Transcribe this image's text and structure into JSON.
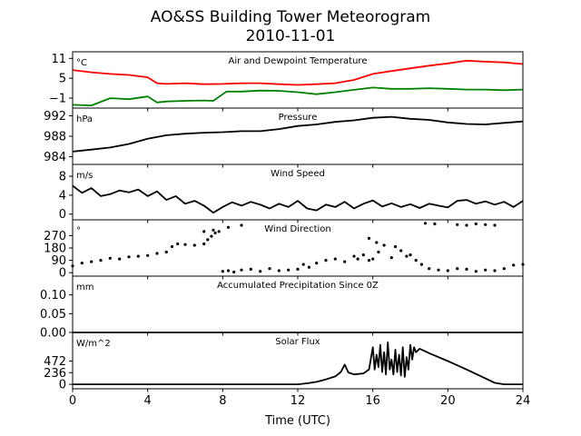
{
  "title": "AO&SS Building Tower Meteorogram",
  "subtitle": "2010-11-01",
  "xlabel": "Time (UTC)",
  "chart_data": {
    "type": "line",
    "x_unit": "hours UTC",
    "xlim": [
      0,
      24
    ],
    "x_ticks": [
      "0",
      "4",
      "8",
      "12",
      "16",
      "20",
      "24"
    ],
    "panels": [
      {
        "key": "temp",
        "title": "Air and Dewpoint Temperature",
        "unit": "°C",
        "ylim": [
          -4,
          13
        ],
        "y_ticks": [
          {
            "v": 11,
            "t": "11"
          },
          {
            "v": 5,
            "t": "5"
          },
          {
            "v": -1,
            "t": "−1"
          }
        ],
        "series": [
          {
            "color": "#ff0000",
            "style": "line",
            "x": [
              0,
              1,
              2,
              3,
              4,
              4.5,
              5,
              6,
              7,
              8,
              9,
              10,
              11,
              12,
              13,
              14,
              15,
              16,
              17,
              18,
              19,
              20,
              21,
              22,
              23,
              24
            ],
            "y": [
              7.5,
              6.8,
              6.3,
              6.0,
              5.3,
              3.5,
              3.3,
              3.5,
              3.2,
              3.3,
              3.5,
              3.5,
              3.2,
              3.0,
              3.2,
              3.5,
              4.5,
              6.3,
              7.2,
              8.0,
              8.8,
              9.5,
              10.3,
              10.0,
              9.8,
              9.3
            ]
          },
          {
            "color": "#008000",
            "style": "line",
            "x": [
              0,
              1,
              2,
              3,
              4,
              4.5,
              5,
              6,
              7,
              7.5,
              8.2,
              9,
              10,
              11,
              12,
              13,
              14,
              15,
              16,
              17,
              18,
              19,
              20,
              21,
              22,
              23,
              24
            ],
            "y": [
              -3.0,
              -3.2,
              -1.0,
              -1.3,
              -0.5,
              -2.3,
              -2.0,
              -1.8,
              -1.7,
              -1.8,
              1.0,
              1.0,
              1.3,
              1.2,
              0.8,
              0.2,
              0.8,
              1.5,
              2.2,
              1.8,
              1.8,
              2.0,
              1.8,
              1.6,
              1.6,
              1.4,
              1.6
            ]
          }
        ]
      },
      {
        "key": "pressure",
        "title": "Pressure",
        "unit": "hPa",
        "ylim": [
          982.5,
          993.5
        ],
        "y_ticks": [
          {
            "v": 992,
            "t": "992"
          },
          {
            "v": 988,
            "t": "988"
          },
          {
            "v": 984,
            "t": "984"
          }
        ],
        "series": [
          {
            "color": "#000000",
            "style": "line",
            "x": [
              0,
              1,
              2,
              3,
              4,
              5,
              6,
              7,
              8,
              9,
              10,
              11,
              12,
              13,
              14,
              15,
              16,
              17,
              18,
              19,
              20,
              21,
              22,
              23,
              24
            ],
            "y": [
              985.0,
              985.4,
              985.8,
              986.5,
              987.5,
              988.2,
              988.5,
              988.7,
              988.8,
              989.0,
              989.0,
              989.4,
              990.0,
              990.3,
              990.8,
              991.1,
              991.6,
              991.8,
              991.4,
              991.2,
              990.7,
              990.4,
              990.3,
              990.6,
              990.9
            ]
          }
        ]
      },
      {
        "key": "wind_speed",
        "title": "Wind Speed",
        "unit": "m/s",
        "ylim": [
          -1.2,
          10.5
        ],
        "y_ticks": [
          {
            "v": 8,
            "t": "8"
          },
          {
            "v": 4,
            "t": "4"
          },
          {
            "v": 0,
            "t": "0"
          }
        ],
        "series": [
          {
            "color": "#000000",
            "style": "line",
            "x": [
              0,
              0.5,
              1,
              1.5,
              2,
              2.5,
              3,
              3.5,
              4,
              4.5,
              5,
              5.5,
              6,
              6.5,
              7,
              7.5,
              8,
              8.5,
              9,
              9.5,
              10,
              10.5,
              11,
              11.5,
              12,
              12.5,
              13,
              13.5,
              14,
              14.5,
              15,
              15.5,
              16,
              16.5,
              17,
              17.5,
              18,
              18.5,
              19,
              19.5,
              20,
              20.5,
              21,
              21.5,
              22,
              22.5,
              23,
              23.5,
              24
            ],
            "y": [
              6.0,
              4.5,
              5.5,
              3.8,
              4.2,
              5.0,
              4.6,
              5.2,
              3.8,
              4.8,
              3.0,
              3.8,
              2.2,
              2.8,
              1.8,
              0.3,
              1.5,
              2.5,
              1.8,
              2.6,
              2.0,
              1.2,
              2.2,
              1.5,
              2.8,
              1.2,
              0.8,
              2.0,
              1.5,
              2.6,
              1.2,
              2.2,
              2.9,
              1.6,
              2.3,
              1.5,
              2.1,
              1.3,
              2.2,
              1.8,
              1.4,
              2.8,
              3.0,
              2.2,
              2.7,
              2.0,
              2.6,
              1.5,
              2.8
            ]
          }
        ]
      },
      {
        "key": "wind_dir",
        "title": "Wind Direction",
        "unit": "°",
        "ylim": [
          -25,
          385
        ],
        "y_ticks": [
          {
            "v": 270,
            "t": "270"
          },
          {
            "v": 180,
            "t": "180"
          },
          {
            "v": 90,
            "t": "90"
          },
          {
            "v": 0,
            "t": "0"
          }
        ],
        "series": [
          {
            "color": "#000000",
            "style": "dots",
            "x": [
              0,
              0.5,
              1,
              1.5,
              2,
              2.5,
              3,
              3.5,
              4,
              4.5,
              5,
              5.3,
              5.6,
              6,
              6.5,
              7,
              7.2,
              7.4,
              7.6,
              7.8,
              8,
              8.3,
              8.6,
              9,
              9.5,
              10,
              10.5,
              11,
              11.5,
              12,
              12.3,
              12.6,
              13,
              13.5,
              14,
              14.5,
              15,
              15.2,
              15.5,
              15.8,
              16,
              16.3,
              16.6,
              17,
              17.2,
              17.5,
              17.8,
              18,
              18.3,
              18.6,
              19,
              19.5,
              20,
              20.5,
              21,
              21.5,
              22,
              22.5,
              23,
              23.5,
              24,
              7.0,
              7.5,
              8.3,
              9.0,
              18.8,
              19.3,
              20.5,
              21.0,
              21.5,
              22.0,
              22.5,
              15.8,
              16.2
            ],
            "y": [
              50,
              70,
              80,
              90,
              105,
              100,
              115,
              120,
              125,
              140,
              150,
              190,
              210,
              205,
              200,
              210,
              240,
              265,
              290,
              300,
              10,
              15,
              5,
              20,
              25,
              10,
              30,
              15,
              20,
              25,
              60,
              40,
              70,
              90,
              100,
              80,
              120,
              100,
              130,
              90,
              100,
              150,
              200,
              110,
              190,
              160,
              120,
              130,
              90,
              60,
              30,
              20,
              15,
              30,
              25,
              10,
              20,
              15,
              30,
              55,
              60,
              300,
              310,
              330,
              345,
              360,
              355,
              350,
              345,
              355,
              350,
              345,
              250,
              220
            ]
          }
        ]
      },
      {
        "key": "precip",
        "title": "Accumulated Precipitation Since 0Z",
        "unit": "mm",
        "ylim": [
          0,
          0.15
        ],
        "y_ticks": [
          {
            "v": 0.1,
            "t": "0.10"
          },
          {
            "v": 0.05,
            "t": "0.05"
          },
          {
            "v": 0,
            "t": "0.00"
          }
        ],
        "series": [
          {
            "color": "#000000",
            "style": "line",
            "x": [
              0,
              24
            ],
            "y": [
              0,
              0
            ]
          }
        ]
      },
      {
        "key": "solar",
        "title": "Solar Flux",
        "unit": "W/m^2",
        "ylim": [
          -90,
          1050
        ],
        "y_ticks": [
          {
            "v": 472,
            "t": "472"
          },
          {
            "v": 236,
            "t": "236"
          },
          {
            "v": 0,
            "t": "0"
          }
        ],
        "series": [
          {
            "color": "#000000",
            "style": "line",
            "x": [
              0,
              12,
              12.5,
              13,
              13.5,
              14,
              14.3,
              14.5,
              14.7,
              15,
              15.5,
              15.8,
              16,
              16.1,
              16.2,
              16.3,
              16.4,
              16.5,
              16.6,
              16.7,
              16.8,
              16.9,
              17,
              17.1,
              17.2,
              17.3,
              17.4,
              17.5,
              17.6,
              17.7,
              17.8,
              17.9,
              18,
              18.1,
              18.2,
              18.3,
              18.5,
              19,
              20,
              21,
              22,
              22.5,
              23,
              24
            ],
            "y": [
              0,
              0,
              20,
              50,
              100,
              160,
              250,
              400,
              240,
              200,
              220,
              300,
              750,
              300,
              600,
              350,
              800,
              250,
              650,
              200,
              850,
              300,
              500,
              200,
              700,
              250,
              600,
              180,
              750,
              150,
              550,
              300,
              800,
              500,
              750,
              650,
              720,
              630,
              470,
              300,
              120,
              30,
              0,
              0
            ]
          }
        ]
      }
    ]
  }
}
